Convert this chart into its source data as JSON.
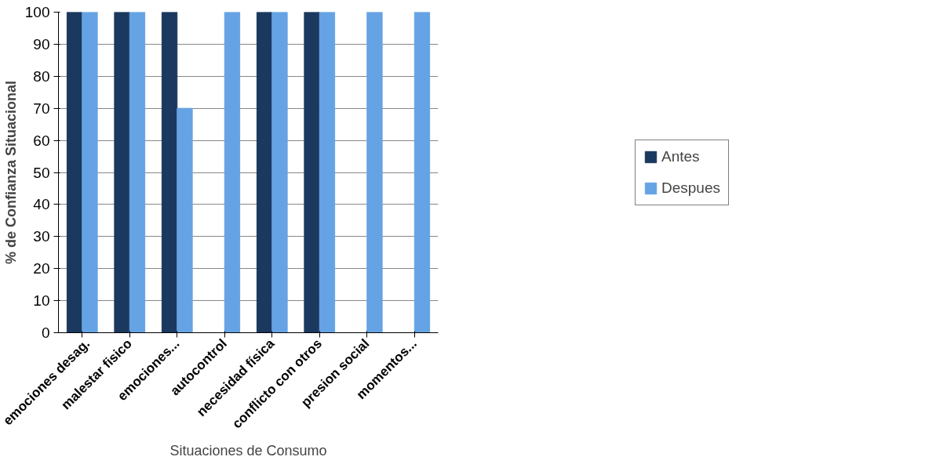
{
  "chart_data": {
    "type": "bar",
    "xlabel": "Situaciones de Consumo",
    "ylabel": "% de Confianza Situacional",
    "categories": [
      "emociones desag.",
      "malestar fisico",
      "emociones...",
      "autocontrol",
      "necesidad física",
      "conflicto con otros",
      "presion social",
      "momentos..."
    ],
    "series": [
      {
        "name": "Antes",
        "color": "#1b385e",
        "values": [
          100,
          100,
          100,
          0,
          100,
          100,
          0,
          0
        ]
      },
      {
        "name": "Despues",
        "color": "#66a3e4",
        "values": [
          100,
          100,
          70,
          100,
          100,
          100,
          100,
          100
        ]
      }
    ],
    "ylim": [
      0,
      100
    ],
    "yticks": [
      0,
      10,
      20,
      30,
      40,
      50,
      60,
      70,
      80,
      90,
      100
    ],
    "grid": "y",
    "legend": "right"
  }
}
